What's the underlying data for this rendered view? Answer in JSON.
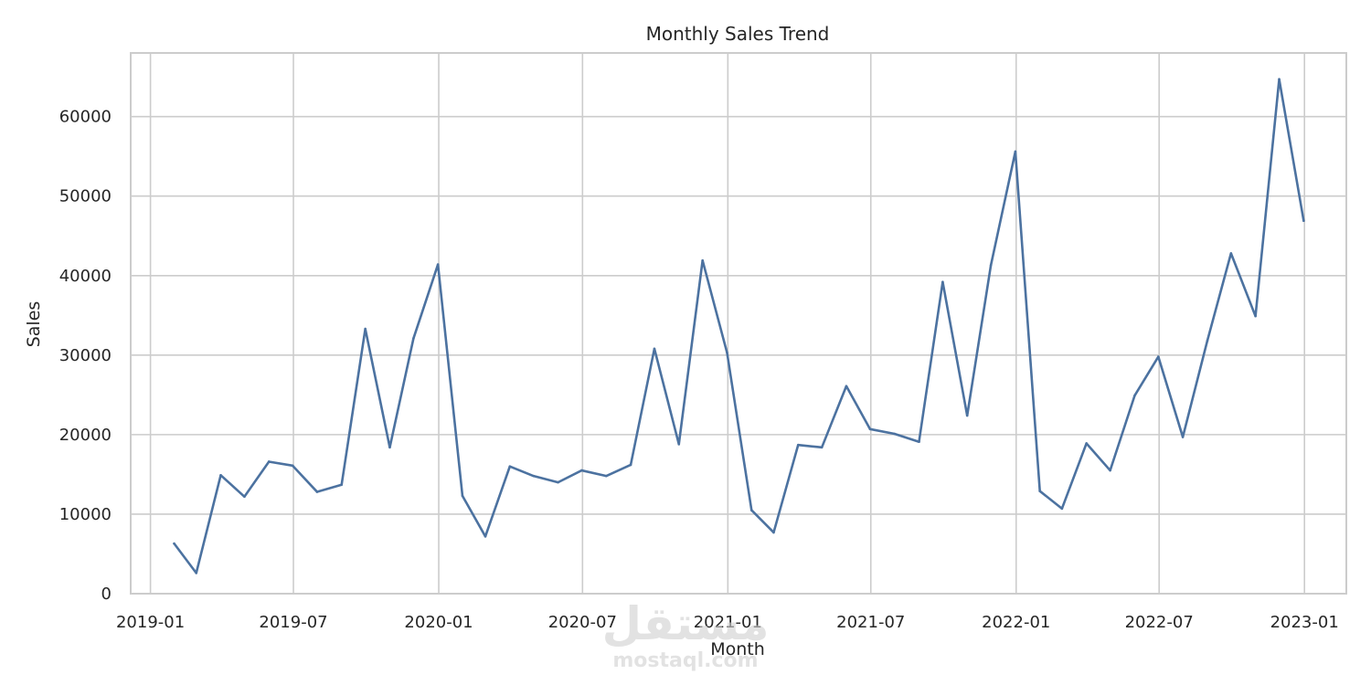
{
  "chart_data": {
    "type": "line",
    "title": "Monthly Sales Trend",
    "xlabel": "Month",
    "ylabel": "Sales",
    "x_tick_labels": [
      "2019-01",
      "2019-07",
      "2020-01",
      "2020-07",
      "2021-01",
      "2021-07",
      "2022-01",
      "2022-07",
      "2023-01"
    ],
    "y_tick_labels": [
      "0",
      "10000",
      "20000",
      "30000",
      "40000",
      "50000",
      "60000"
    ],
    "y_ticks": [
      0,
      10000,
      20000,
      30000,
      40000,
      50000,
      60000
    ],
    "ylim": [
      0,
      68000
    ],
    "xlim": [
      "2018-12-07",
      "2023-02-23"
    ],
    "grid": true,
    "legend": "none",
    "series": [
      {
        "color": "#4c72a0",
        "x": [
          "2019-01-31",
          "2019-02-28",
          "2019-03-31",
          "2019-04-30",
          "2019-05-31",
          "2019-06-30",
          "2019-07-31",
          "2019-08-31",
          "2019-09-30",
          "2019-10-31",
          "2019-11-30",
          "2019-12-31",
          "2020-01-31",
          "2020-02-29",
          "2020-03-31",
          "2020-04-30",
          "2020-05-31",
          "2020-06-30",
          "2020-07-31",
          "2020-08-31",
          "2020-09-30",
          "2020-10-31",
          "2020-11-30",
          "2020-12-31",
          "2021-01-31",
          "2021-02-28",
          "2021-03-31",
          "2021-04-30",
          "2021-05-31",
          "2021-06-30",
          "2021-07-31",
          "2021-08-31",
          "2021-09-30",
          "2021-10-31",
          "2021-11-30",
          "2021-12-31",
          "2022-01-31",
          "2022-02-28",
          "2022-03-31",
          "2022-04-30",
          "2022-05-31",
          "2022-06-30",
          "2022-07-31",
          "2022-08-31",
          "2022-09-30",
          "2022-10-31",
          "2022-11-30",
          "2022-12-31"
        ],
        "values": [
          6300,
          2600,
          14900,
          12200,
          16600,
          16100,
          12800,
          13700,
          33300,
          18400,
          32100,
          41400,
          12300,
          7200,
          16000,
          14800,
          14000,
          15500,
          14800,
          16200,
          30800,
          18800,
          41900,
          30300,
          10500,
          7700,
          18700,
          18400,
          26100,
          20700,
          20100,
          19100,
          39200,
          22400,
          41300,
          55600,
          12900,
          10700,
          18900,
          15500,
          24900,
          29800,
          19700,
          31800,
          42800,
          34900,
          64700,
          46900
        ]
      }
    ]
  },
  "watermark": {
    "primary": "مستقل",
    "secondary": "mostaql.com"
  }
}
